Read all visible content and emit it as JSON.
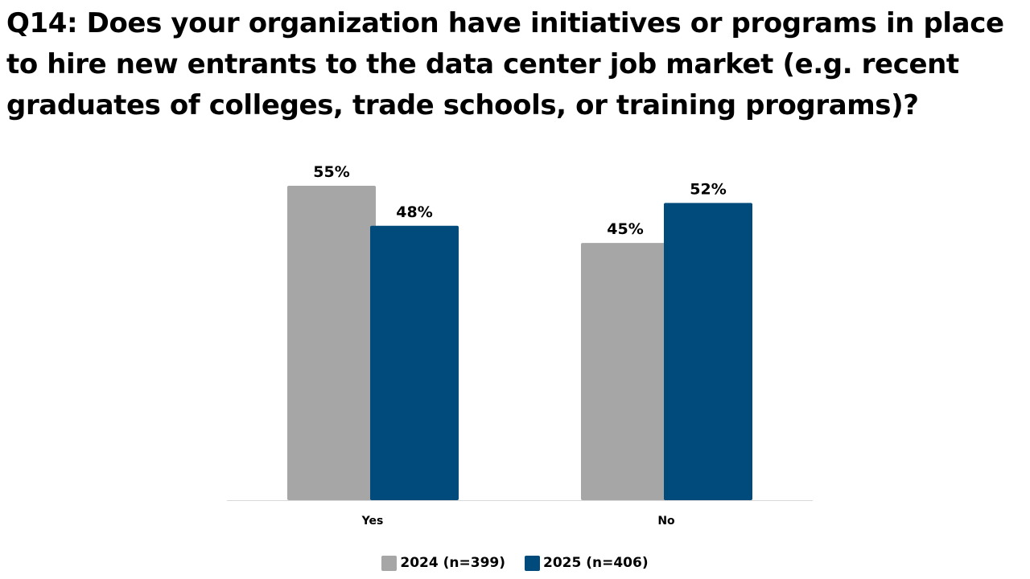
{
  "title_lines": [
    "Q14: Does your organization have initiatives or programs in place",
    "to hire new entrants to the data center job market (e.g. recent",
    "graduates of colleges, trade schools, or training programs)?"
  ],
  "chart_data": {
    "type": "bar",
    "title": "Q14: Does your organization have initiatives or programs in place to hire new entrants to the data center job market (e.g. recent graduates of colleges, trade schools, or training programs)?",
    "categories": [
      "Yes",
      "No"
    ],
    "series": [
      {
        "name": "2024 (n=399)",
        "values": [
          55,
          45
        ],
        "labels": [
          "55%",
          "45%"
        ],
        "color": "#a6a6a6"
      },
      {
        "name": "2025 (n=406)",
        "values": [
          48,
          52
        ],
        "labels": [
          "48%",
          "52%"
        ],
        "color": "#004b7c"
      }
    ],
    "unit": "%",
    "ylim": [
      0,
      55
    ],
    "grid": false,
    "legend_position": "bottom",
    "xlabel": "",
    "ylabel": ""
  }
}
